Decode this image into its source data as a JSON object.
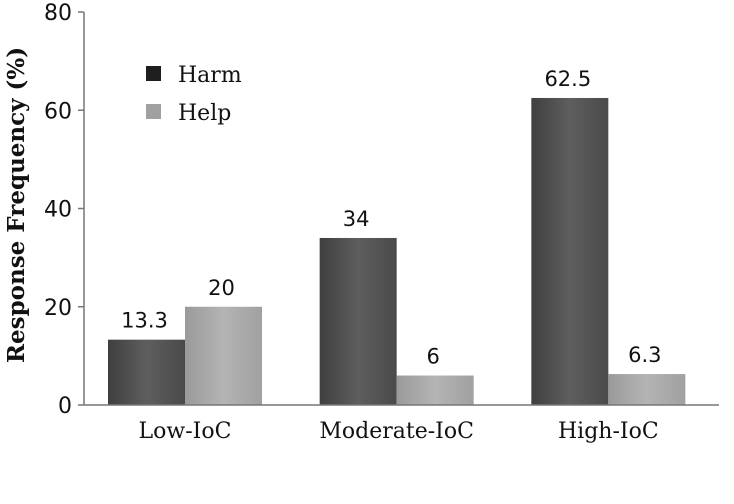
{
  "chart_data": {
    "type": "bar",
    "title": "",
    "xlabel": "",
    "ylabel": "Response Frequency (%)",
    "ylim": [
      0,
      80
    ],
    "yticks": [
      0,
      20,
      40,
      60,
      80
    ],
    "grid": false,
    "legend_position": "top-left",
    "categories": [
      "Low-IoC",
      "Moderate-IoC",
      "High-IoC"
    ],
    "series": [
      {
        "name": "Harm",
        "values": [
          13.3,
          34,
          62.5
        ],
        "labels": [
          "13.3",
          "34",
          "62.5"
        ],
        "color": "#5a5a5a"
      },
      {
        "name": "Help",
        "values": [
          20,
          6,
          6.3
        ],
        "labels": [
          "20",
          "6",
          "6.3"
        ],
        "color": "#a8a8a8"
      }
    ]
  }
}
